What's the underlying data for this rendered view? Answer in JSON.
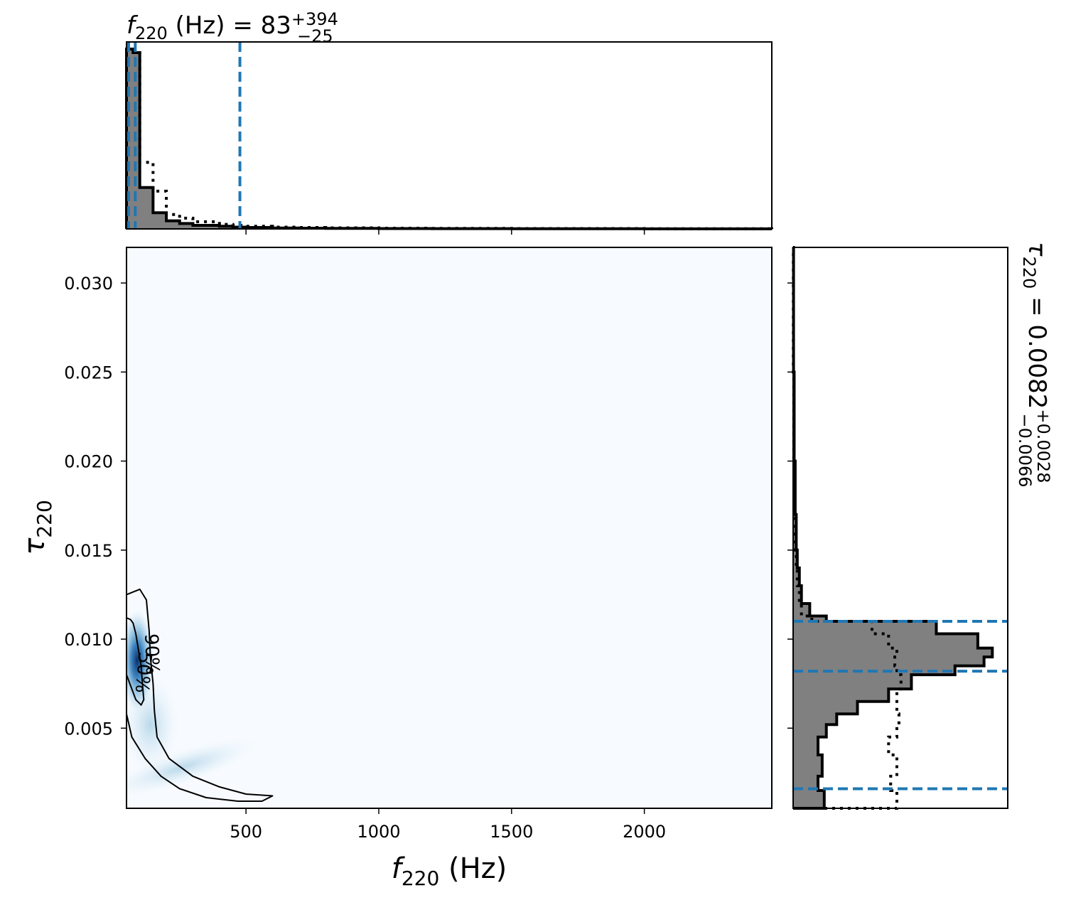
{
  "chart_data": [
    {
      "panel": "top-marginal",
      "type": "histogram",
      "title_parts": {
        "symbol": "f",
        "sub": "220",
        "rest": " (Hz) = 83",
        "sup": "+394",
        "low": "−25"
      },
      "xlim": [
        50,
        2480
      ],
      "bin_edges": [
        50,
        75,
        100,
        125,
        150,
        175,
        200,
        225,
        250,
        275,
        300,
        350,
        400,
        450,
        500,
        600,
        700,
        800,
        1000,
        1200,
        1500,
        2000,
        2480
      ],
      "posterior_density": [
        100,
        98,
        23,
        23,
        9,
        9,
        4.5,
        4.5,
        3,
        3,
        2,
        2,
        1.5,
        1,
        0.8,
        0.5,
        0.4,
        0.3,
        0.2,
        0.15,
        0.1,
        0.05
      ],
      "prior_density": [
        100,
        98,
        37,
        37,
        21,
        21,
        8,
        8,
        6,
        6,
        4,
        4,
        2.5,
        2,
        1.5,
        1,
        0.8,
        0.6,
        0.4,
        0.3,
        0.2,
        0.1
      ],
      "quantile_lines": [
        58,
        83,
        477
      ],
      "line_color": "#1f77b4",
      "fill_color": "#808080"
    },
    {
      "panel": "joint-density",
      "type": "heatmap",
      "xlabel_parts": {
        "symbol": "f",
        "sub": "220",
        "rest": " (Hz)"
      },
      "ylabel_parts": {
        "symbol": "τ",
        "sub": "220"
      },
      "xlim": [
        50,
        2480
      ],
      "ylim": [
        0.0005,
        0.032
      ],
      "xticks": [
        500,
        1000,
        1500,
        2000
      ],
      "xtick_labels": [
        "500",
        "1000",
        "1500",
        "2000"
      ],
      "yticks": [
        0.005,
        0.01,
        0.015,
        0.02,
        0.025,
        0.03
      ],
      "ytick_labels": [
        "0.005",
        "0.010",
        "0.015",
        "0.020",
        "0.025",
        "0.030"
      ],
      "colormap": "Blues",
      "background_color": "#f7fbff",
      "density_peak": {
        "f": 90,
        "tau": 0.0088
      },
      "contours": [
        {
          "label": "90%",
          "points": [
            [
              50,
              0.0125
            ],
            [
              100,
              0.0128
            ],
            [
              125,
              0.0122
            ],
            [
              135,
              0.0105
            ],
            [
              140,
              0.009
            ],
            [
              150,
              0.0075
            ],
            [
              155,
              0.006
            ],
            [
              165,
              0.0045
            ],
            [
              210,
              0.0033
            ],
            [
              300,
              0.0023
            ],
            [
              400,
              0.0017
            ],
            [
              500,
              0.0013
            ],
            [
              600,
              0.0012
            ],
            [
              560,
              0.0009
            ],
            [
              470,
              0.0009
            ],
            [
              350,
              0.0011
            ],
            [
              250,
              0.0016
            ],
            [
              180,
              0.0023
            ],
            [
              120,
              0.0033
            ],
            [
              70,
              0.0045
            ],
            [
              50,
              0.0058
            ]
          ]
        },
        {
          "label": "50%",
          "points": [
            [
              50,
              0.0112
            ],
            [
              65,
              0.0111
            ],
            [
              75,
              0.0109
            ],
            [
              85,
              0.0103
            ],
            [
              95,
              0.0094
            ],
            [
              105,
              0.0085
            ],
            [
              110,
              0.0075
            ],
            [
              115,
              0.0066
            ],
            [
              105,
              0.0063
            ],
            [
              85,
              0.0066
            ],
            [
              70,
              0.0072
            ],
            [
              55,
              0.0078
            ],
            [
              50,
              0.008
            ]
          ]
        }
      ],
      "contour_labels": [
        "90%",
        "50%"
      ]
    },
    {
      "panel": "right-marginal",
      "type": "histogram",
      "orientation": "horizontal",
      "title_parts": {
        "symbol": "τ",
        "sub": "220",
        "rest": " = 0.0082",
        "sup": "+0.0028",
        "low": "−0.0066"
      },
      "ylim": [
        0.0005,
        0.032
      ],
      "bin_edges": [
        0.0005,
        0.0015,
        0.0023,
        0.0035,
        0.0045,
        0.0052,
        0.0058,
        0.0065,
        0.0072,
        0.008,
        0.0085,
        0.009,
        0.0095,
        0.0103,
        0.011,
        0.0113,
        0.012,
        0.013,
        0.014,
        0.015,
        0.017,
        0.02,
        0.025,
        0.032
      ],
      "posterior_density": [
        0.15,
        0.12,
        0.14,
        0.12,
        0.16,
        0.21,
        0.31,
        0.46,
        0.57,
        0.78,
        0.92,
        0.96,
        0.89,
        0.69,
        0.16,
        0.08,
        0.04,
        0.03,
        0.02,
        0.015,
        0.01,
        0.005,
        0.002
      ],
      "prior_density": [
        0.5,
        0.47,
        0.5,
        0.46,
        0.5,
        0.51,
        0.5,
        0.5,
        0.52,
        0.5,
        0.49,
        0.5,
        0.46,
        0.38,
        0.09,
        0.04,
        0.03,
        0.02,
        0.015,
        0.01,
        0.005,
        0.003,
        0.001
      ],
      "quantile_lines": [
        0.0016,
        0.0082,
        0.011
      ],
      "line_color": "#1f77b4",
      "fill_color": "#808080"
    }
  ]
}
